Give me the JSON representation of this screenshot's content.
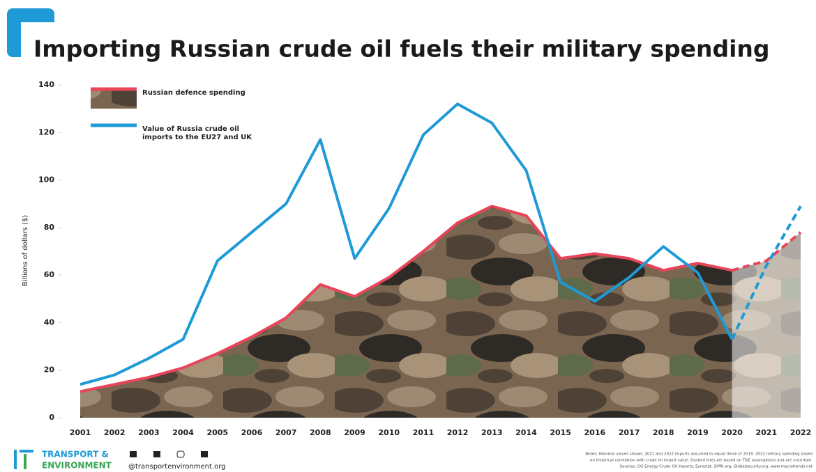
{
  "chart_data": {
    "type": "line",
    "title": "Importing Russian crude oil fuels their military spending",
    "y_label": "Billions of dollars ($)",
    "categories": [
      "2001",
      "2002",
      "2003",
      "2004",
      "2005",
      "2006",
      "2007",
      "2008",
      "2009",
      "2010",
      "2011",
      "2012",
      "2013",
      "2014",
      "2015",
      "2016",
      "2017",
      "2018",
      "2019",
      "2020",
      "2021",
      "2022"
    ],
    "dashed_from": "2020",
    "series": [
      {
        "name": "Russian defence spending",
        "color": "#e8445a",
        "area": true,
        "values": [
          11,
          14,
          17,
          21,
          27,
          34,
          42,
          56,
          51,
          59,
          70,
          82,
          89,
          85,
          67,
          69,
          67,
          62,
          65,
          62,
          66,
          78
        ]
      },
      {
        "name": "Value of Russia crude oil imports to the EU27 and UK",
        "color": "#1e9ad6",
        "area": false,
        "values": [
          14,
          18,
          25,
          33,
          66,
          78,
          90,
          117,
          67,
          88,
          119,
          132,
          124,
          104,
          57,
          49,
          59,
          72,
          61,
          33,
          64,
          89
        ]
      }
    ],
    "ylim": [
      0,
      140
    ],
    "yticks": [
      0,
      20,
      40,
      60,
      80,
      100,
      120,
      140
    ],
    "footer": {
      "brand_line1": "TRANSPORT &",
      "brand_line2": "ENVIRONMENT",
      "handle": "@transportenvironment.org",
      "notes": "Notes: Nominal values shown; 2021 and 2022 imports assumed to equal those of 2019. 2022 military spending based",
      "notes2": "on historical correlation with crude oil import value. Dashed lines are based on T&E assumptions and are uncertain.",
      "sources": "Sources: DG Energy Crude Oil Imports, Eurostat, SIPRI.org, Globalsecurity.org, www.macrotrends.net"
    }
  }
}
